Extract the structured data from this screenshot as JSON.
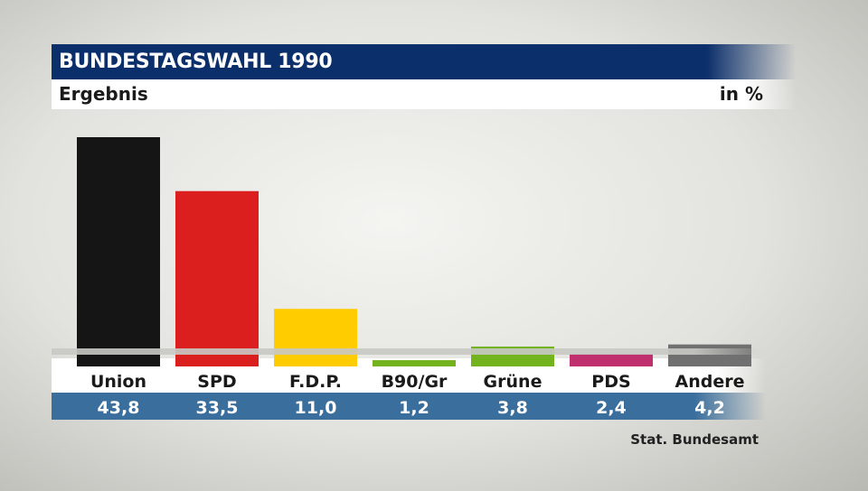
{
  "header": {
    "title": "BUNDESTAGSWAHL 1990",
    "subtitle": "Ergebnis",
    "unit": "in %"
  },
  "source": "Stat. Bundesamt",
  "chart_data": {
    "type": "bar",
    "categories": [
      "Union",
      "SPD",
      "F.D.P.",
      "B90/Gr",
      "Grüne",
      "PDS",
      "Andere"
    ],
    "values": [
      43.8,
      33.5,
      11.0,
      1.2,
      3.8,
      2.4,
      4.2
    ],
    "value_labels": [
      "43,8",
      "33,5",
      "11,0",
      "1,2",
      "3,8",
      "2,4",
      "4,2"
    ],
    "colors": [
      "#151515",
      "#db1f1f",
      "#ffcc00",
      "#73b41e",
      "#73b41e",
      "#c0306e",
      "#707070"
    ],
    "title": "BUNDESTAGSWAHL 1990",
    "subtitle": "Ergebnis",
    "ylabel": "in %",
    "ylim": [
      0,
      46
    ],
    "grid": false,
    "legend": "none"
  }
}
